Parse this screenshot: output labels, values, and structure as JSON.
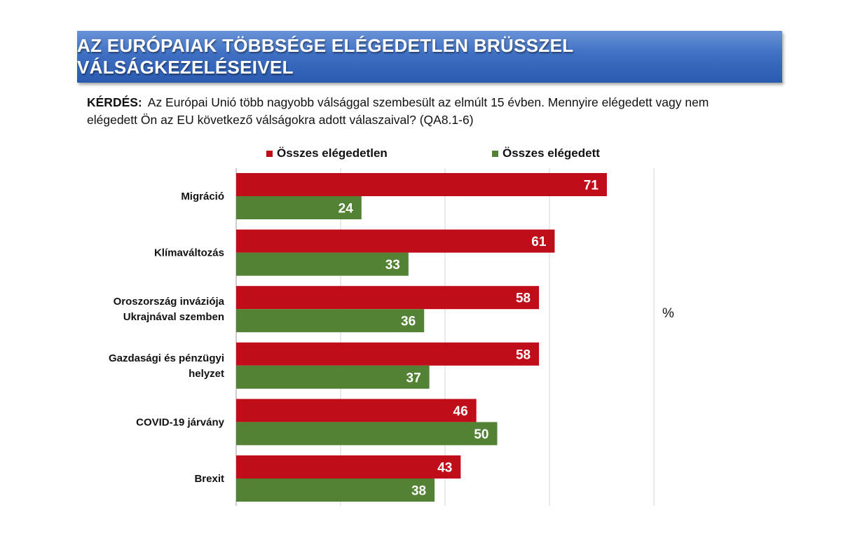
{
  "header": {
    "title": "AZ EURÓPAIAK TÖBBSÉGE ELÉGEDETLEN BRÜSSZEL VÁLSÁGKEZELÉSEIVEL"
  },
  "question": {
    "label": "KÉRDÉS:",
    "text": "Az Európai Unió több nagyobb válsággal szembesült az elmúlt 15 évben. Mennyire elégedett vagy nem elégedett Ön az EU következő válságokra adott válaszaival? (QA8.1-6)"
  },
  "unit_label": "%",
  "colors": {
    "dissatisfied": "#c00d1a",
    "satisfied": "#548235",
    "banner": "#3e6fc3"
  },
  "chart_data": {
    "type": "bar",
    "orientation": "horizontal",
    "categories": [
      [
        "Migráció"
      ],
      [
        "Klímaváltozás"
      ],
      [
        "Oroszország inváziója",
        "Ukrajnával szemben"
      ],
      [
        "Gazdasági és pénzügyi",
        "helyzet"
      ],
      [
        "COVID-19 járvány"
      ],
      [
        "Brexit"
      ]
    ],
    "series": [
      {
        "name": "Összes elégedetlen",
        "color": "#c00d1a",
        "values": [
          71,
          61,
          58,
          58,
          46,
          43
        ]
      },
      {
        "name": "Összes elégedett",
        "color": "#548235",
        "values": [
          24,
          33,
          36,
          37,
          50,
          38
        ]
      }
    ],
    "xlim": [
      0,
      80
    ],
    "grid": true,
    "legend": "top",
    "unit": "%"
  }
}
